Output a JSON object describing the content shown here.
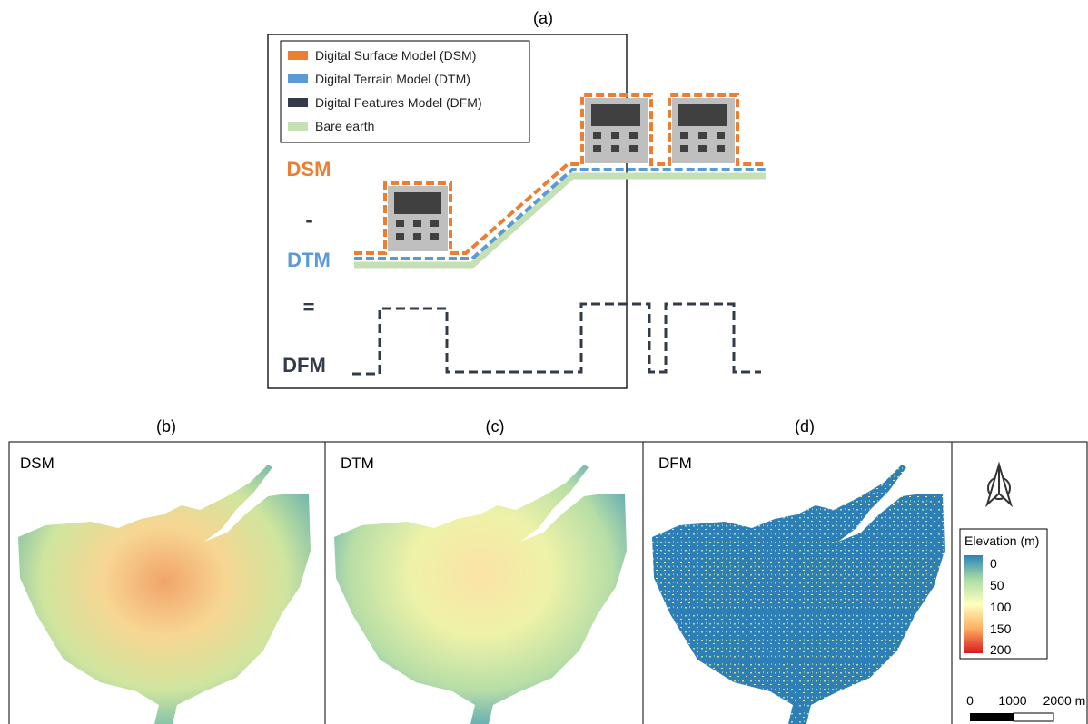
{
  "panel_a": {
    "label": "(a)",
    "legend": [
      "Digital Surface Model (DSM)",
      "Digital Terrain Model (DTM)",
      "Digital Features Model (DFM)",
      "Bare earth"
    ],
    "equation": [
      "DSM",
      "-",
      "DTM",
      "=",
      "DFM"
    ]
  },
  "maps": [
    {
      "label": "(b)",
      "title": "DSM"
    },
    {
      "label": "(c)",
      "title": "DTM"
    },
    {
      "label": "(d)",
      "title": "DFM"
    }
  ],
  "colorbar": {
    "title": "Elevation (m)",
    "ticks": [
      "0",
      "50",
      "100",
      "150",
      "200"
    ]
  },
  "scale_bar": [
    "0",
    "1000",
    "2000 m"
  ]
}
